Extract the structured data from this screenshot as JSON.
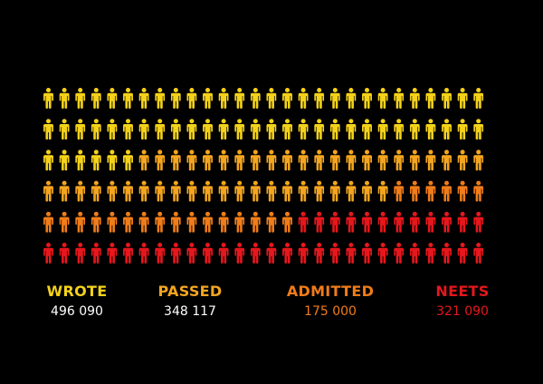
{
  "chart_data": {
    "type": "pictogram",
    "grid": {
      "rows": 6,
      "columns": 28
    },
    "icon": "person-icon",
    "categories": [
      "WROTE",
      "PASSED",
      "ADMITTED",
      "NEETS"
    ],
    "values": [
      496090,
      348117,
      175000,
      321090
    ],
    "value_labels": [
      "496 090",
      "348 117",
      "175 000",
      "321 090"
    ],
    "colors": {
      "wrote": "#f4d21a",
      "passed": "#f4a520",
      "admitted": "#f07c1a",
      "neets": "#e5171d"
    }
  }
}
